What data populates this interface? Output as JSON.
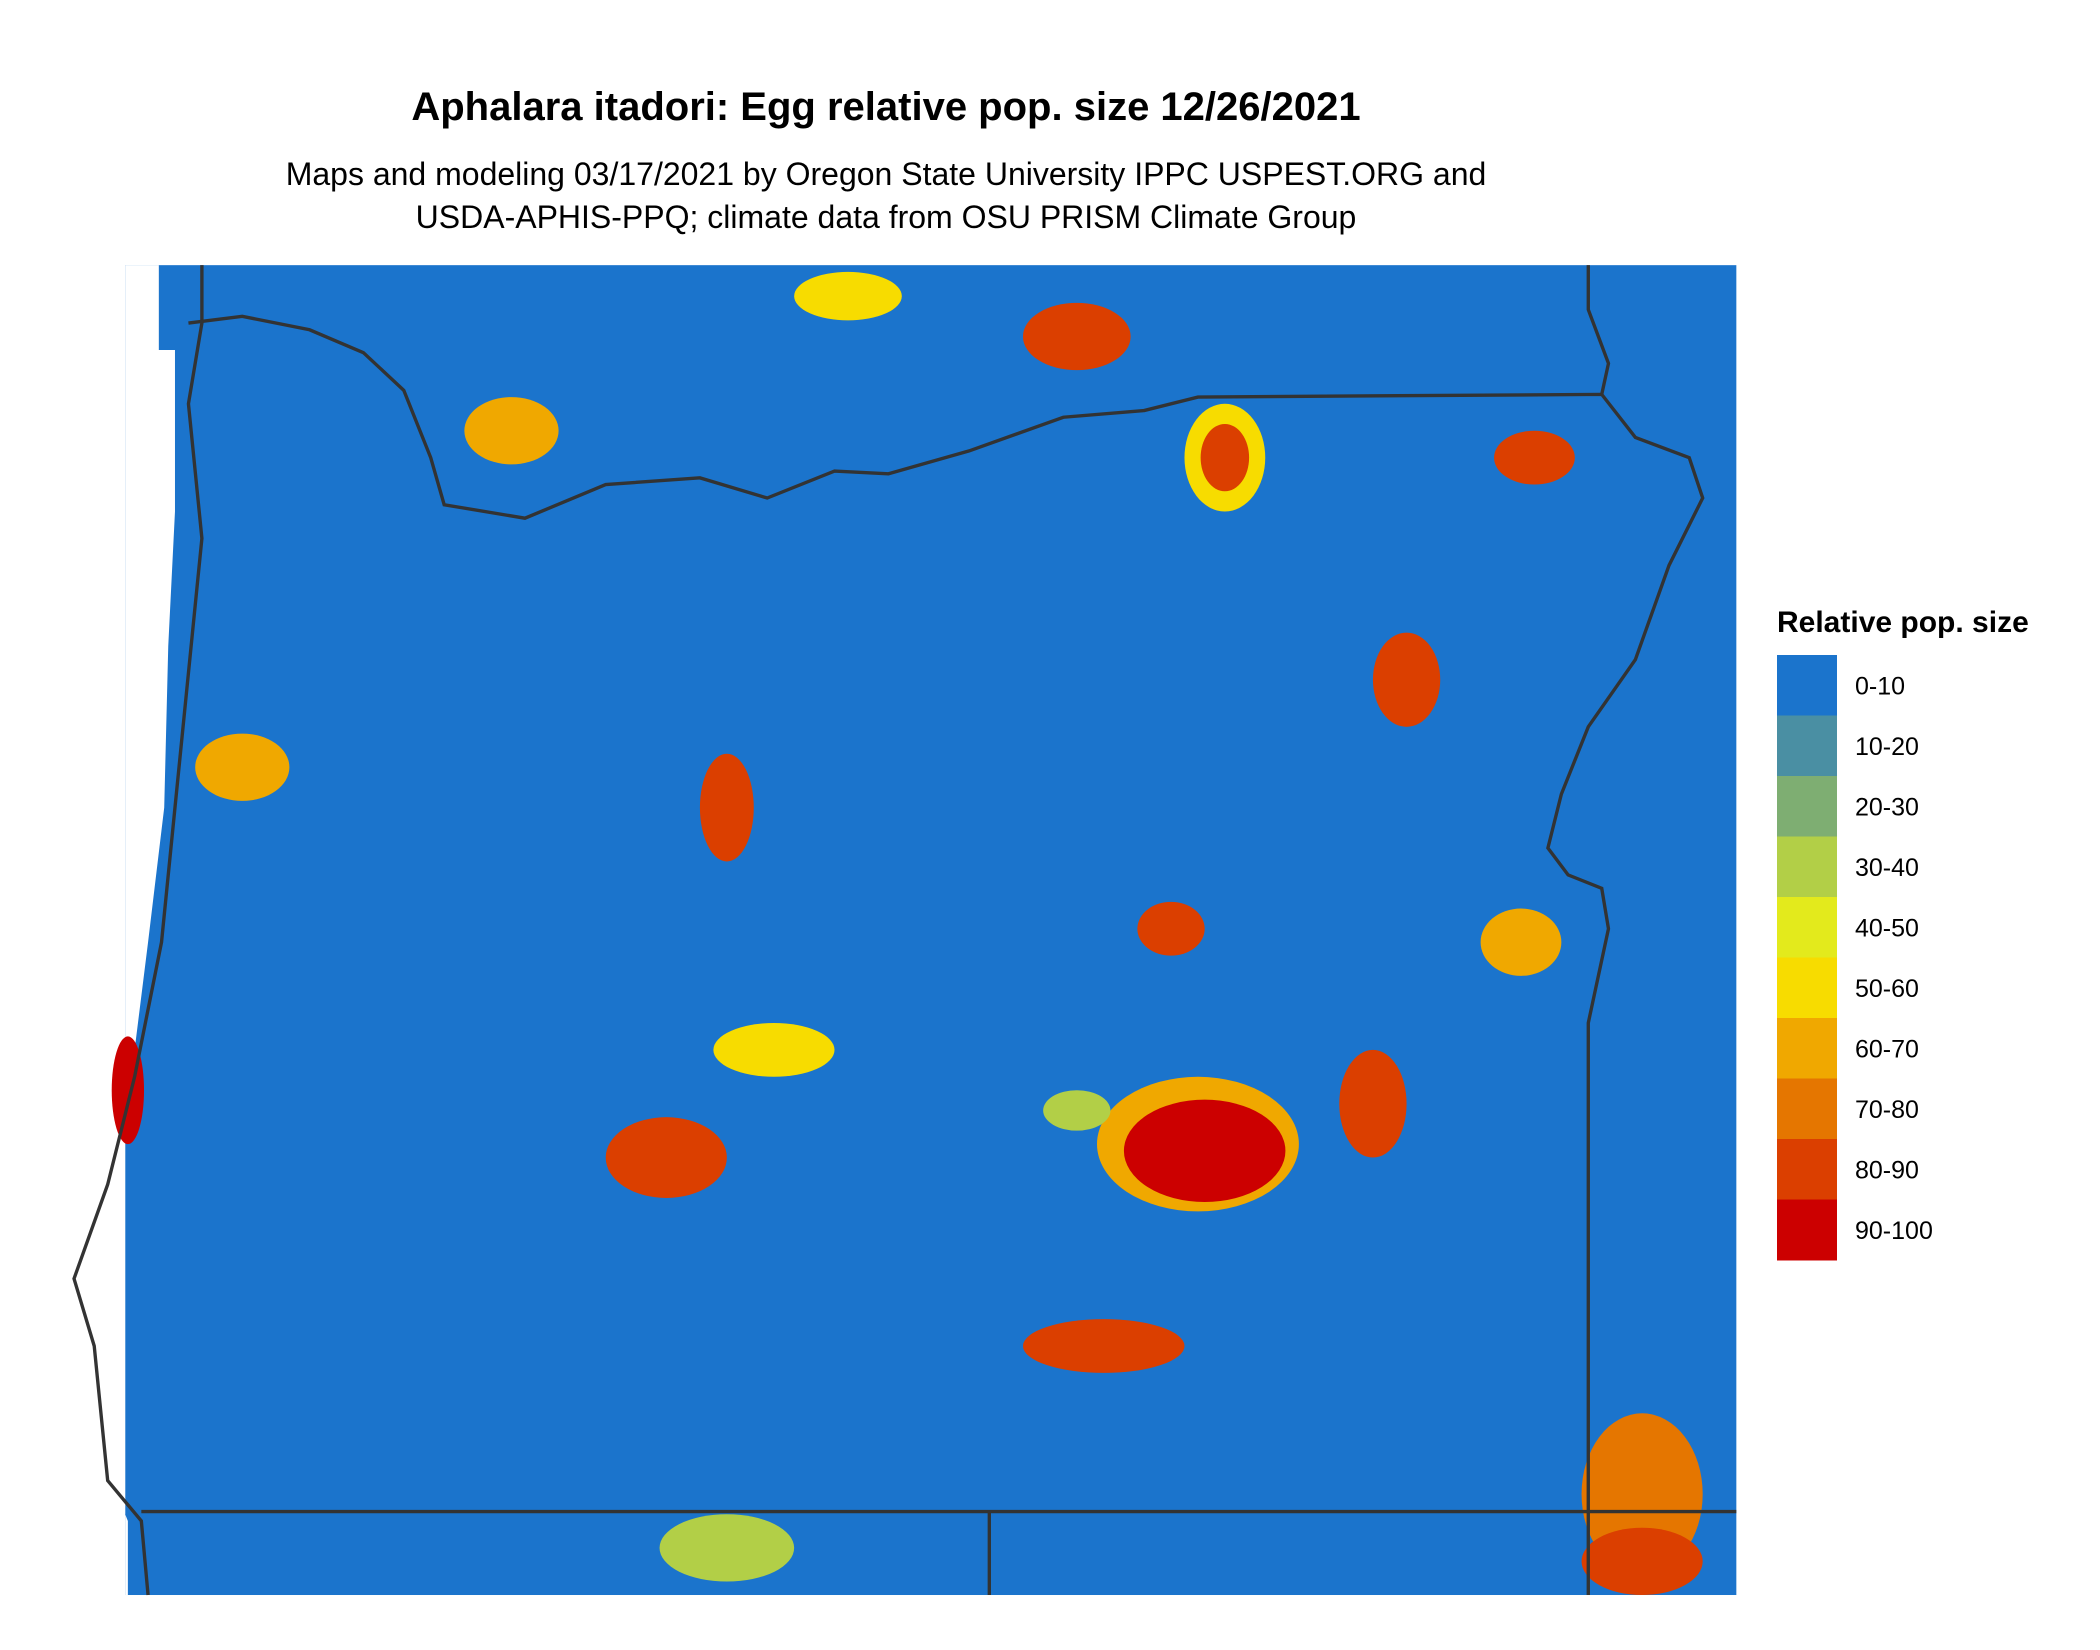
{
  "header": {
    "title": "Aphalara itadori: Egg relative pop. size 12/26/2021",
    "subtitle_lines": [
      "Maps and modeling 03/17/2021 by Oregon State University IPPC USPEST.ORG and",
      "USDA-APHIS-PPQ; climate data from OSU PRISM Climate Group"
    ]
  },
  "legend": {
    "title": "Relative pop. size",
    "items": [
      {
        "label": "0-10",
        "color": "#1b74cc"
      },
      {
        "label": "10-20",
        "color": "#4a8fa3"
      },
      {
        "label": "20-30",
        "color": "#7eae72"
      },
      {
        "label": "30-40",
        "color": "#b2cf47"
      },
      {
        "label": "40-50",
        "color": "#e3ea1c"
      },
      {
        "label": "50-60",
        "color": "#f7dc00"
      },
      {
        "label": "60-70",
        "color": "#f0a800"
      },
      {
        "label": "70-80",
        "color": "#e57600"
      },
      {
        "label": "80-90",
        "color": "#db3f00"
      },
      {
        "label": "90-100",
        "color": "#cc0000"
      }
    ]
  }
}
